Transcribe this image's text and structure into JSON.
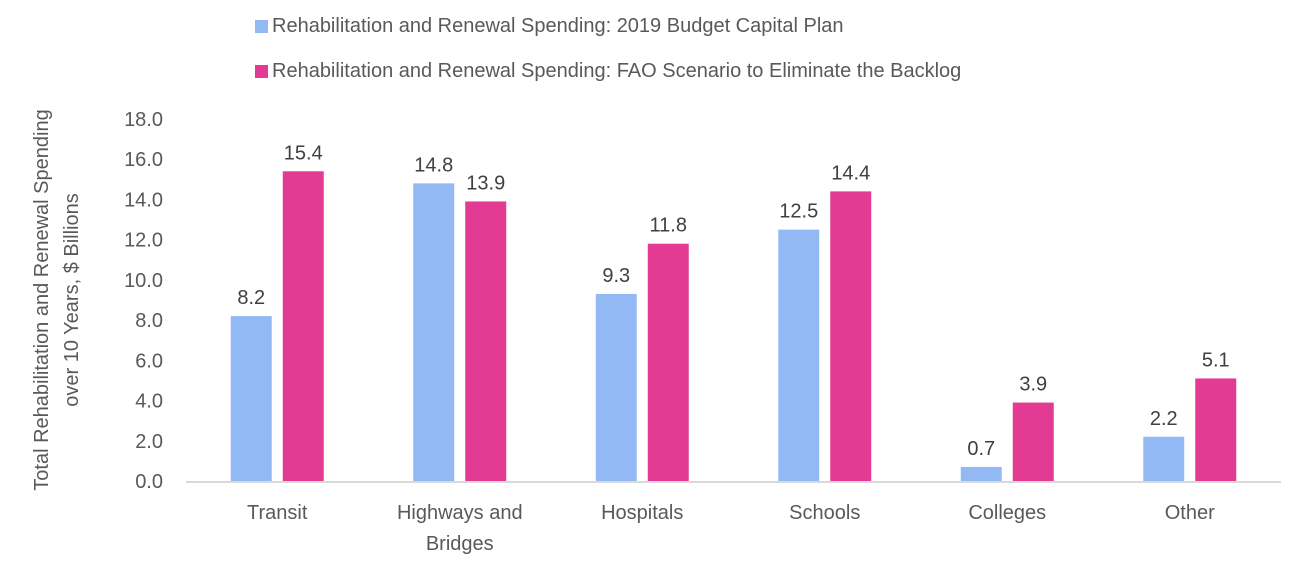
{
  "chart_data": {
    "type": "bar",
    "title": "",
    "xlabel": "",
    "ylabel": [
      "Total Rehabilitation and Renewal Spending",
      "over 10 Years, $ Billions"
    ],
    "ylim": [
      0,
      18
    ],
    "yticks": [
      "0.0",
      "2.0",
      "4.0",
      "6.0",
      "8.0",
      "10.0",
      "12.0",
      "14.0",
      "16.0",
      "18.0"
    ],
    "ytick_values": [
      0,
      2,
      4,
      6,
      8,
      10,
      12,
      14,
      16,
      18
    ],
    "grid": false,
    "legend_position": "top",
    "categories": [
      [
        "Transit"
      ],
      [
        "Highways and",
        "Bridges"
      ],
      [
        "Hospitals"
      ],
      [
        "Schools"
      ],
      [
        "Colleges"
      ],
      [
        "Other"
      ]
    ],
    "series": [
      {
        "name": "Rehabilitation and Renewal Spending: 2019 Budget Capital Plan",
        "color": "#93b9f5",
        "values": [
          8.2,
          14.8,
          9.3,
          12.5,
          0.7,
          2.2
        ],
        "labels": [
          "8.2",
          "14.8",
          "9.3",
          "12.5",
          "0.7",
          "2.2"
        ]
      },
      {
        "name": "Rehabilitation and Renewal Spending: FAO Scenario to Eliminate the Backlog",
        "color": "#e33b94",
        "values": [
          15.4,
          13.9,
          11.8,
          14.4,
          3.9,
          5.1
        ],
        "labels": [
          "15.4",
          "13.9",
          "11.8",
          "14.4",
          "3.9",
          "5.1"
        ]
      }
    ],
    "axis_color": "#d9d9d9"
  }
}
